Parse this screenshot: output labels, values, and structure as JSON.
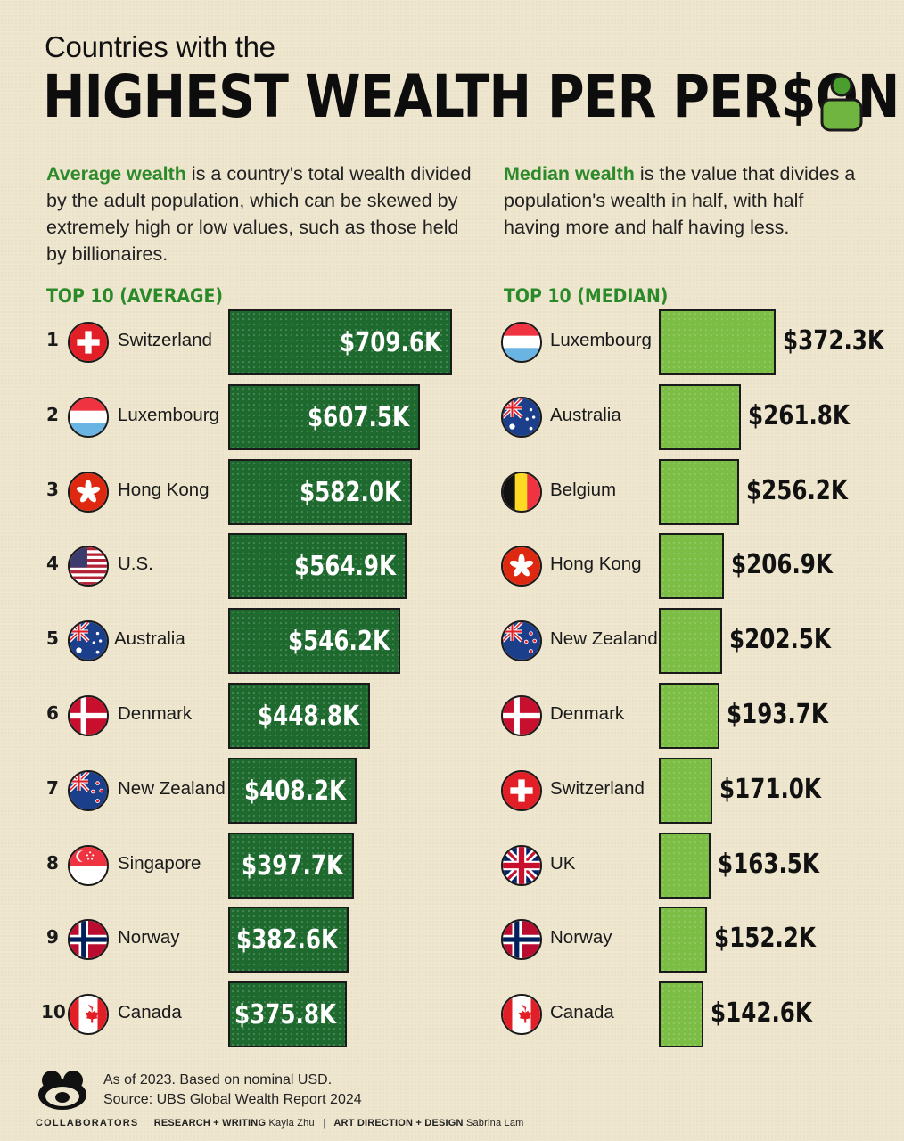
{
  "header": {
    "subtitle": "Countries with the",
    "title": "HIGHEST WEALTH PER PER$ON"
  },
  "intro": {
    "left_term": "Average wealth",
    "left_text": " is a country's total wealth divided by the adult population, which can be skewed by extremely high or low values, such as those held by billionaires.",
    "right_term": "Median wealth",
    "right_text": " is the value that divides a population's wealth in half, with half having more and half having less."
  },
  "colors": {
    "average_bar": "#1e6a2e",
    "median_bar": "#7bbd45",
    "accent_text": "#2d8a2a",
    "background": "#efe6cf"
  },
  "chart_data": [
    {
      "type": "bar",
      "title": "TOP 10 (AVERAGE)",
      "ranks": [
        "1",
        "2",
        "3",
        "4",
        "5",
        "6",
        "7",
        "8",
        "9",
        "10"
      ],
      "categories": [
        "Switzerland",
        "Luxembourg",
        "Hong Kong",
        "U.S.",
        "Australia",
        "Denmark",
        "New Zealand",
        "Singapore",
        "Norway",
        "Canada"
      ],
      "flags": [
        "switzerland-flag-icon",
        "luxembourg-flag-icon",
        "hong-kong-flag-icon",
        "us-flag-icon",
        "australia-flag-icon",
        "denmark-flag-icon",
        "new-zealand-flag-icon",
        "singapore-flag-icon",
        "norway-flag-icon",
        "canada-flag-icon"
      ],
      "values": [
        709.6,
        607.5,
        582.0,
        564.9,
        546.2,
        448.8,
        408.2,
        397.7,
        382.6,
        375.8
      ],
      "labels": [
        "$709.6K",
        "$607.5K",
        "$582.0K",
        "$564.9K",
        "$546.2K",
        "$448.8K",
        "$408.2K",
        "$397.7K",
        "$382.6K",
        "$375.8K"
      ],
      "unit": "thousand USD"
    },
    {
      "type": "bar",
      "title": "TOP 10 (MEDIAN)",
      "categories": [
        "Luxembourg",
        "Australia",
        "Belgium",
        "Hong Kong",
        "New Zealand",
        "Denmark",
        "Switzerland",
        "UK",
        "Norway",
        "Canada"
      ],
      "flags": [
        "luxembourg-flag-icon",
        "australia-flag-icon",
        "belgium-flag-icon",
        "hong-kong-flag-icon",
        "new-zealand-flag-icon",
        "denmark-flag-icon",
        "switzerland-flag-icon",
        "uk-flag-icon",
        "norway-flag-icon",
        "canada-flag-icon"
      ],
      "values": [
        372.3,
        261.8,
        256.2,
        206.9,
        202.5,
        193.7,
        171.0,
        163.5,
        152.2,
        142.6
      ],
      "labels": [
        "$372.3K",
        "$261.8K",
        "$256.2K",
        "$206.9K",
        "$202.5K",
        "$193.7K",
        "$171.0K",
        "$163.5K",
        "$152.2K",
        "$142.6K"
      ],
      "unit": "thousand USD"
    }
  ],
  "footer": {
    "note1": "As of 2023. Based on nominal USD.",
    "note2": "Source: UBS Global Wealth Report 2024",
    "brand": "COLLABORATORS",
    "role1": "RESEARCH + WRITING",
    "person1": "Kayla Zhu",
    "separator": "|",
    "role2": "ART DIRECTION + DESIGN",
    "person2": "Sabrina Lam"
  }
}
